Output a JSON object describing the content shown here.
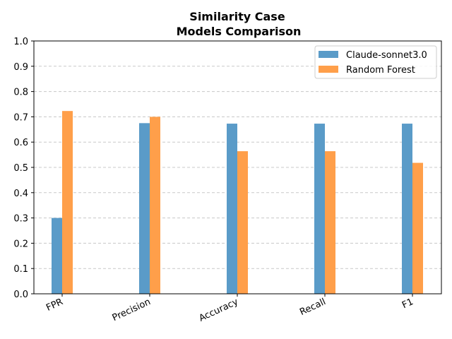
{
  "chart_data": {
    "type": "bar",
    "title_line1": "Similarity Case",
    "title_line2": "Models Comparison",
    "xlabel": "",
    "ylabel": "",
    "categories": [
      "FPR",
      "Precision",
      "Accuracy",
      "Recall",
      "F1"
    ],
    "series": [
      {
        "name": "Claude-sonnet3.0",
        "color": "#5a9bc8",
        "values": [
          0.3,
          0.675,
          0.673,
          0.673,
          0.673
        ]
      },
      {
        "name": "Random Forest",
        "color": "#ff9f4a",
        "values": [
          0.723,
          0.7,
          0.564,
          0.564,
          0.518
        ]
      }
    ],
    "ylim": [
      0,
      1.0
    ],
    "yticks": [
      "0.0",
      "0.1",
      "0.2",
      "0.3",
      "0.4",
      "0.5",
      "0.6",
      "0.7",
      "0.8",
      "0.9",
      "1.0"
    ],
    "grid": "y-dashed",
    "legend_position": "top-right"
  }
}
